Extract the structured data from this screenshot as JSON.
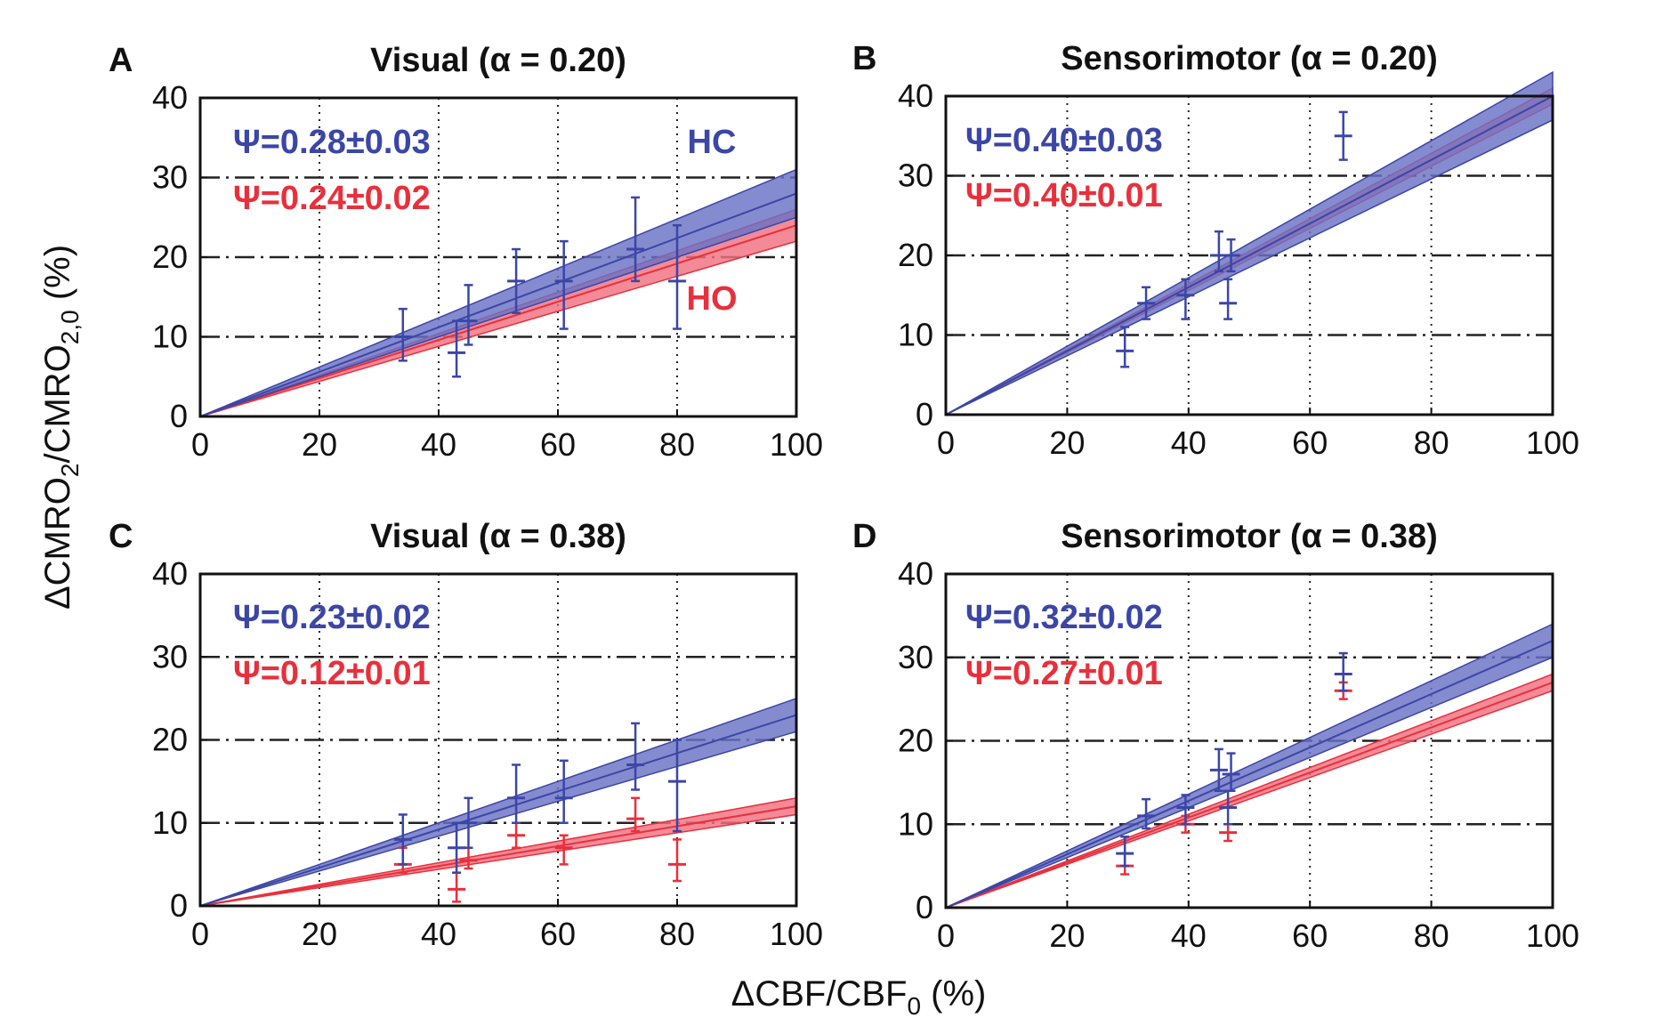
{
  "figure": {
    "xlabel_main": "ΔCBF/CBF",
    "xlabel_sub": "0",
    "xlabel_tail": " (%)",
    "ylabel_main1": "ΔCMRO",
    "ylabel_sub1": "2",
    "ylabel_main2": "/CMRO",
    "ylabel_sub2": "2,0",
    "ylabel_tail": " (%)"
  },
  "colors": {
    "hc": "#3b46a6",
    "ho": "#e8303c",
    "hc_band": "#6a72c4",
    "ho_band": "#f07080",
    "overlap": "#7a3fa0"
  },
  "chart_data": [
    {
      "type": "line",
      "panel_label": "A",
      "title": "Visual (α = 0.20)",
      "xlim": [
        0,
        100
      ],
      "ylim": [
        0,
        40
      ],
      "xticks": [
        "0",
        "20",
        "40",
        "60",
        "80",
        "100"
      ],
      "yticks": [
        "0",
        "10",
        "20",
        "30",
        "40"
      ],
      "grid": true,
      "series": [
        {
          "name": "HC",
          "label": "Ψ=0.28±0.03",
          "slope": 0.28,
          "slope_err": 0.03,
          "points": [
            {
              "x": 34,
              "y": 10,
              "ylo": 7,
              "yhi": 13.5
            },
            {
              "x": 43,
              "y": 8,
              "ylo": 5,
              "yhi": 12
            },
            {
              "x": 45,
              "y": 12,
              "ylo": 9,
              "yhi": 16.5
            },
            {
              "x": 53,
              "y": 17,
              "ylo": 13,
              "yhi": 21
            },
            {
              "x": 61,
              "y": 17,
              "ylo": 11,
              "yhi": 22
            },
            {
              "x": 73,
              "y": 21,
              "ylo": 17,
              "yhi": 27.5
            },
            {
              "x": 80,
              "y": 17,
              "ylo": 11,
              "yhi": 24
            }
          ]
        },
        {
          "name": "HO",
          "label": "Ψ=0.24±0.02",
          "slope": 0.24,
          "slope_err": 0.02,
          "points": []
        }
      ],
      "annotations": [
        "HC",
        "HO"
      ]
    },
    {
      "type": "line",
      "panel_label": "B",
      "title": "Sensorimotor (α = 0.20)",
      "xlim": [
        0,
        100
      ],
      "ylim": [
        0,
        40
      ],
      "xticks": [
        "0",
        "20",
        "40",
        "60",
        "80",
        "100"
      ],
      "yticks": [
        "0",
        "10",
        "20",
        "30",
        "40"
      ],
      "grid": true,
      "series": [
        {
          "name": "HC",
          "label": "Ψ=0.40±0.03",
          "slope": 0.4,
          "slope_err": 0.03,
          "points": [
            {
              "x": 29.5,
              "y": 8,
              "ylo": 6,
              "yhi": 11
            },
            {
              "x": 33,
              "y": 14,
              "ylo": 12,
              "yhi": 16
            },
            {
              "x": 39.5,
              "y": 15,
              "ylo": 12,
              "yhi": 17
            },
            {
              "x": 45,
              "y": 20,
              "ylo": 18,
              "yhi": 23
            },
            {
              "x": 46.5,
              "y": 14,
              "ylo": 12,
              "yhi": 17
            },
            {
              "x": 47,
              "y": 20,
              "ylo": 18,
              "yhi": 22
            },
            {
              "x": 65.5,
              "y": 35,
              "ylo": 32,
              "yhi": 38
            }
          ]
        },
        {
          "name": "HO",
          "label": "Ψ=0.40±0.01",
          "slope": 0.4,
          "slope_err": 0.01,
          "points": []
        }
      ],
      "annotations": []
    },
    {
      "type": "line",
      "panel_label": "C",
      "title": "Visual (α = 0.38)",
      "xlim": [
        0,
        100
      ],
      "ylim": [
        0,
        40
      ],
      "xticks": [
        "0",
        "20",
        "40",
        "60",
        "80",
        "100"
      ],
      "yticks": [
        "0",
        "10",
        "20",
        "30",
        "40"
      ],
      "grid": true,
      "series": [
        {
          "name": "HC",
          "label": "Ψ=0.23±0.02",
          "slope": 0.23,
          "slope_err": 0.02,
          "points": [
            {
              "x": 34,
              "y": 8,
              "ylo": 5,
              "yhi": 11
            },
            {
              "x": 43,
              "y": 7,
              "ylo": 4,
              "yhi": 10
            },
            {
              "x": 45,
              "y": 10,
              "ylo": 7,
              "yhi": 13
            },
            {
              "x": 53,
              "y": 13,
              "ylo": 10,
              "yhi": 17
            },
            {
              "x": 61,
              "y": 13,
              "ylo": 10,
              "yhi": 17.5
            },
            {
              "x": 73,
              "y": 17,
              "ylo": 14,
              "yhi": 22
            },
            {
              "x": 80,
              "y": 15,
              "ylo": 9,
              "yhi": 20
            }
          ]
        },
        {
          "name": "HO",
          "label": "Ψ=0.12±0.01",
          "slope": 0.12,
          "slope_err": 0.01,
          "points": [
            {
              "x": 34,
              "y": 5,
              "ylo": 4,
              "yhi": 7
            },
            {
              "x": 43,
              "y": 2,
              "ylo": 0.5,
              "yhi": 4
            },
            {
              "x": 45,
              "y": 5.5,
              "ylo": 4.5,
              "yhi": 7
            },
            {
              "x": 53,
              "y": 8.5,
              "ylo": 7,
              "yhi": 10
            },
            {
              "x": 61,
              "y": 7,
              "ylo": 5,
              "yhi": 8.5
            },
            {
              "x": 73,
              "y": 10.5,
              "ylo": 9,
              "yhi": 13
            },
            {
              "x": 80,
              "y": 5,
              "ylo": 3,
              "yhi": 8
            }
          ]
        }
      ],
      "annotations": []
    },
    {
      "type": "line",
      "panel_label": "D",
      "title": "Sensorimotor (α = 0.38)",
      "xlim": [
        0,
        100
      ],
      "ylim": [
        0,
        40
      ],
      "xticks": [
        "0",
        "20",
        "40",
        "60",
        "80",
        "100"
      ],
      "yticks": [
        "0",
        "10",
        "20",
        "30",
        "40"
      ],
      "grid": true,
      "series": [
        {
          "name": "HC",
          "label": "Ψ=0.32±0.02",
          "slope": 0.32,
          "slope_err": 0.02,
          "points": [
            {
              "x": 29.5,
              "y": 6.5,
              "ylo": 5,
              "yhi": 8.5
            },
            {
              "x": 33,
              "y": 11,
              "ylo": 9.5,
              "yhi": 13
            },
            {
              "x": 39.5,
              "y": 12,
              "ylo": 10,
              "yhi": 13.5
            },
            {
              "x": 45,
              "y": 16.5,
              "ylo": 14,
              "yhi": 19
            },
            {
              "x": 46.5,
              "y": 12,
              "ylo": 10,
              "yhi": 14
            },
            {
              "x": 47,
              "y": 16,
              "ylo": 14,
              "yhi": 18.5
            },
            {
              "x": 65.5,
              "y": 28,
              "ylo": 26,
              "yhi": 30.5
            }
          ]
        },
        {
          "name": "HO",
          "label": "Ψ=0.27±0.01",
          "slope": 0.27,
          "slope_err": 0.01,
          "points": [
            {
              "x": 29.5,
              "y": 5,
              "ylo": 4,
              "yhi": 6.5
            },
            {
              "x": 39.5,
              "y": 10,
              "ylo": 9,
              "yhi": 11
            },
            {
              "x": 46.5,
              "y": 9,
              "ylo": 8,
              "yhi": 10
            },
            {
              "x": 65.5,
              "y": 26,
              "ylo": 25,
              "yhi": 27
            }
          ]
        }
      ],
      "annotations": []
    }
  ]
}
